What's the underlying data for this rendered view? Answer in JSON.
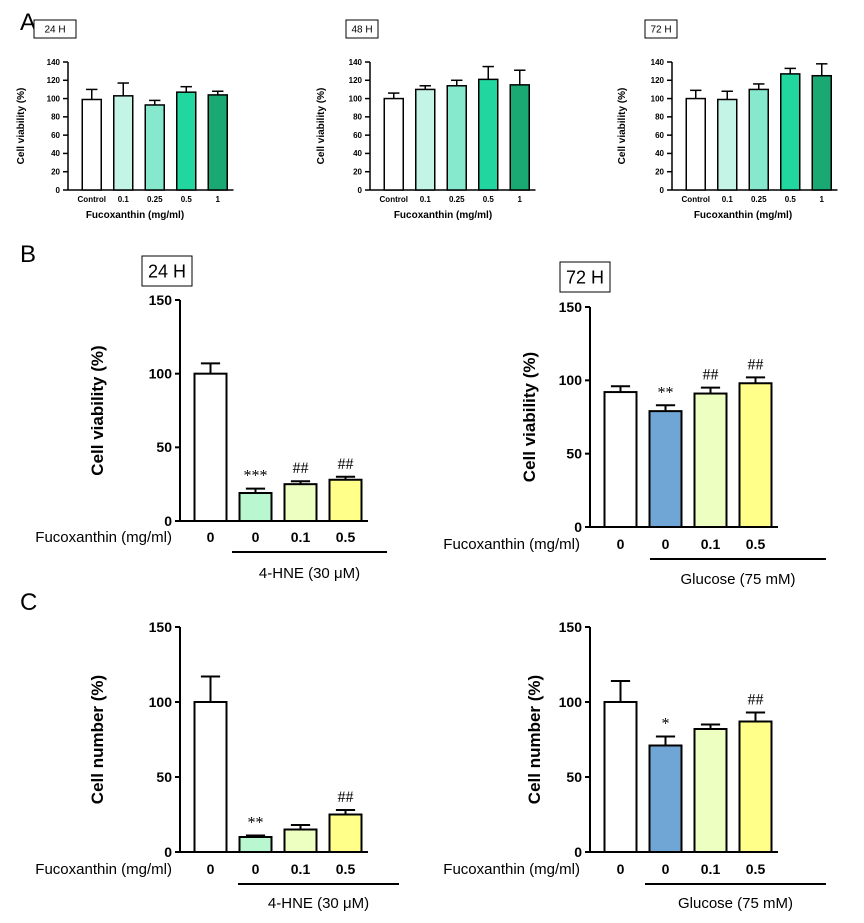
{
  "panels": [
    {
      "letter": "A"
    },
    {
      "letter": "B"
    },
    {
      "letter": "C"
    }
  ],
  "chart_data": [
    {
      "type": "bar",
      "panel": "A",
      "time": "24 H",
      "categories": [
        "Control",
        "0.1",
        "0.25",
        "0.5",
        "1"
      ],
      "values": [
        99,
        103,
        93,
        107,
        104
      ],
      "errors": [
        11,
        14,
        5,
        6,
        4
      ],
      "ylabel": "Cell viability (%)",
      "xlabel": "Fucoxanthin (mg/ml)",
      "ylim": [
        0,
        140
      ],
      "yticks": [
        0,
        20,
        40,
        60,
        80,
        100,
        120,
        140
      ],
      "colors": [
        "#ffffff",
        "#c3f4e6",
        "#86e9cd",
        "#22d79f",
        "#1aa873"
      ]
    },
    {
      "type": "bar",
      "panel": "A",
      "time": "48 H",
      "categories": [
        "Control",
        "0.1",
        "0.25",
        "0.5",
        "1"
      ],
      "values": [
        100,
        110,
        114,
        121,
        115
      ],
      "errors": [
        6,
        4,
        6,
        14,
        16
      ],
      "ylabel": "Cell viability (%)",
      "xlabel": "Fucoxanthin (mg/ml)",
      "ylim": [
        0,
        140
      ],
      "yticks": [
        0,
        20,
        40,
        60,
        80,
        100,
        120,
        140
      ],
      "colors": [
        "#ffffff",
        "#c3f4e6",
        "#86e9cd",
        "#22d79f",
        "#1aa873"
      ]
    },
    {
      "type": "bar",
      "panel": "A",
      "time": "72 H",
      "categories": [
        "Control",
        "0.1",
        "0.25",
        "0.5",
        "1"
      ],
      "values": [
        100,
        99,
        110,
        127,
        125
      ],
      "errors": [
        9,
        9,
        6,
        6,
        13
      ],
      "ylabel": "Cell viability (%)",
      "xlabel": "Fucoxanthin (mg/ml)",
      "ylim": [
        0,
        140
      ],
      "yticks": [
        0,
        20,
        40,
        60,
        80,
        100,
        120,
        140
      ],
      "colors": [
        "#ffffff",
        "#c3f4e6",
        "#86e9cd",
        "#22d79f",
        "#1aa873"
      ]
    },
    {
      "type": "bar",
      "panel": "B",
      "time": "24 H",
      "row_label": "Fucoxanthin (mg/ml)",
      "categories": [
        "0",
        "0",
        "0.1",
        "0.5"
      ],
      "values": [
        100,
        19,
        25,
        28
      ],
      "errors": [
        7,
        3,
        2,
        2
      ],
      "annotations": [
        "",
        "***",
        "##",
        "##"
      ],
      "ylabel": "Cell viability (%)",
      "ylim": [
        0,
        150
      ],
      "yticks": [
        0,
        50,
        100,
        150
      ],
      "treatment": "4-HNE (30 μM)",
      "colors": [
        "#ffffff",
        "#b8f7cf",
        "#eeffc2",
        "#ffff8a"
      ]
    },
    {
      "type": "bar",
      "panel": "B",
      "time": "72 H",
      "row_label": "Fucoxanthin (mg/ml)",
      "categories": [
        "0",
        "0",
        "0.1",
        "0.5"
      ],
      "values": [
        92,
        79,
        91,
        98
      ],
      "errors": [
        4,
        4,
        4,
        4
      ],
      "annotations": [
        "",
        "**",
        "##",
        "##"
      ],
      "ylabel": "Cell viability (%)",
      "ylim": [
        0,
        150
      ],
      "yticks": [
        0,
        50,
        100,
        150
      ],
      "treatment": "Glucose (75 mM)",
      "colors": [
        "#ffffff",
        "#6fa6d6",
        "#eeffc2",
        "#ffff8a"
      ]
    },
    {
      "type": "bar",
      "panel": "C",
      "row_label": "Fucoxanthin (mg/ml)",
      "categories": [
        "0",
        "0",
        "0.1",
        "0.5"
      ],
      "values": [
        100,
        10,
        15,
        25
      ],
      "errors": [
        17,
        1,
        3,
        3
      ],
      "annotations": [
        "",
        "**",
        "",
        "##"
      ],
      "ylabel": "Cell number (%)",
      "ylim": [
        0,
        150
      ],
      "yticks": [
        0,
        50,
        100,
        150
      ],
      "treatment": "4-HNE (30 μM)",
      "colors": [
        "#ffffff",
        "#b8f7cf",
        "#eeffc2",
        "#ffff8a"
      ]
    },
    {
      "type": "bar",
      "panel": "C",
      "row_label": "Fucoxanthin (mg/ml)",
      "categories": [
        "0",
        "0",
        "0.1",
        "0.5"
      ],
      "values": [
        100,
        71,
        82,
        87
      ],
      "errors": [
        14,
        6,
        3,
        6
      ],
      "annotations": [
        "",
        "*",
        "",
        "##"
      ],
      "ylabel": "Cell number (%)",
      "ylim": [
        0,
        150
      ],
      "yticks": [
        0,
        50,
        100,
        150
      ],
      "treatment": "Glucose (75 mM)",
      "colors": [
        "#ffffff",
        "#6fa6d6",
        "#eeffc2",
        "#ffff8a"
      ]
    }
  ]
}
